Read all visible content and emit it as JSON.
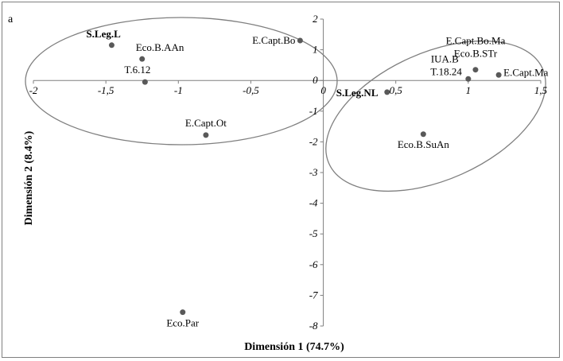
{
  "chart_data": {
    "type": "scatter",
    "panel_label": "a",
    "xlabel": "Dimensión 1 (74.7%)",
    "ylabel": "Dimensión 2 (8.4%)",
    "xlim": [
      -2,
      1.5
    ],
    "ylim": [
      -8,
      2
    ],
    "x_ticks": [
      "-2",
      "-1,5",
      "-1",
      "-0,5",
      "0",
      "0,5",
      "1",
      "1,5"
    ],
    "y_ticks": [
      "2",
      "1",
      "0",
      "-1",
      "-2",
      "-3",
      "-4",
      "-5",
      "-6",
      "-7",
      "-8"
    ],
    "points": [
      {
        "label": "S.Leg.L",
        "x": -1.46,
        "y": 1.15,
        "bold": true
      },
      {
        "label": "Eco.B.AAn",
        "x": -1.25,
        "y": 0.7,
        "bold": false
      },
      {
        "label": "T.6.12",
        "x": -1.23,
        "y": -0.05,
        "bold": false
      },
      {
        "label": "E.Capt.Bo",
        "x": -0.16,
        "y": 1.3,
        "bold": false
      },
      {
        "label": "E.Capt.Ot",
        "x": -0.81,
        "y": -1.78,
        "bold": false
      },
      {
        "label": "Eco.Par",
        "x": -0.97,
        "y": -7.55,
        "bold": false
      },
      {
        "label": "S.Leg.NL",
        "x": 0.44,
        "y": -0.38,
        "bold": true
      },
      {
        "label": "Eco.B.SuAn",
        "x": 0.69,
        "y": -1.75,
        "bold": false
      },
      {
        "label": "IUA.B",
        "x": 1.0,
        "y": 0.05,
        "bold": false
      },
      {
        "label": "T.18.24",
        "x": 1.0,
        "y": 0.05,
        "bold": false
      },
      {
        "label": "E.Capt.Bo.Ma",
        "x": 1.05,
        "y": 0.35,
        "bold": false
      },
      {
        "label": "Eco.B.STr",
        "x": 1.05,
        "y": 0.35,
        "bold": false
      },
      {
        "label": "E.Capt.Ma",
        "x": 1.21,
        "y": 0.18,
        "bold": false
      }
    ],
    "grid": false,
    "legend": "none"
  }
}
